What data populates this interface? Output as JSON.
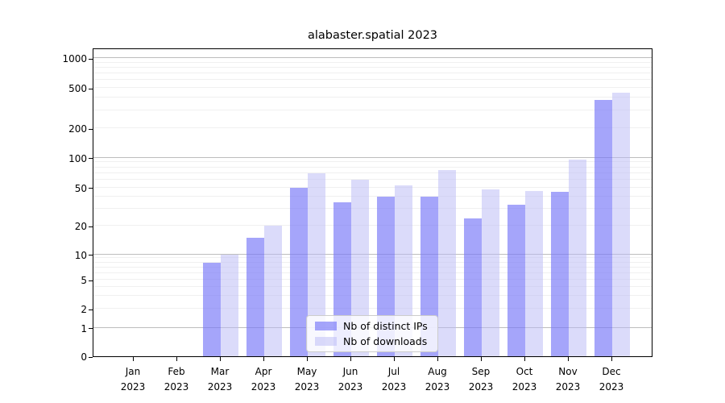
{
  "title": "alabaster.spatial 2023",
  "colors": {
    "distinct_ips_bar": "rgba(121,121,247,0.67)",
    "downloads_bar": "rgba(186,186,246,0.52)",
    "major_gridline": "#bdbdbd",
    "minor_gridline": "#f0f0f0",
    "axis": "#000000",
    "legend_border": "#cccccc"
  },
  "legend": {
    "items": [
      {
        "label": "Nb of distinct IPs"
      },
      {
        "label": "Nb of downloads"
      }
    ]
  },
  "chart_data": {
    "type": "bar",
    "title": "alabaster.spatial 2023",
    "categories": [
      "Jan 2023",
      "Feb 2023",
      "Mar 2023",
      "Apr 2023",
      "May 2023",
      "Jun 2023",
      "Jul 2023",
      "Aug 2023",
      "Sep 2023",
      "Oct 2023",
      "Nov 2023",
      "Dec 2023"
    ],
    "series": [
      {
        "name": "Nb of distinct IPs",
        "values": [
          0,
          0,
          8,
          15,
          50,
          35,
          40,
          40,
          24,
          33,
          45,
          380
        ]
      },
      {
        "name": "Nb of downloads",
        "values": [
          0,
          0,
          10,
          20,
          70,
          60,
          52,
          75,
          48,
          46,
          95,
          450
        ]
      }
    ],
    "yscale": "symlog",
    "y_ticks": [
      0,
      1,
      2,
      5,
      10,
      20,
      50,
      100,
      200,
      500,
      1000
    ],
    "ylim": [
      0,
      1400
    ],
    "grid": true,
    "legend_position": "lower center"
  }
}
